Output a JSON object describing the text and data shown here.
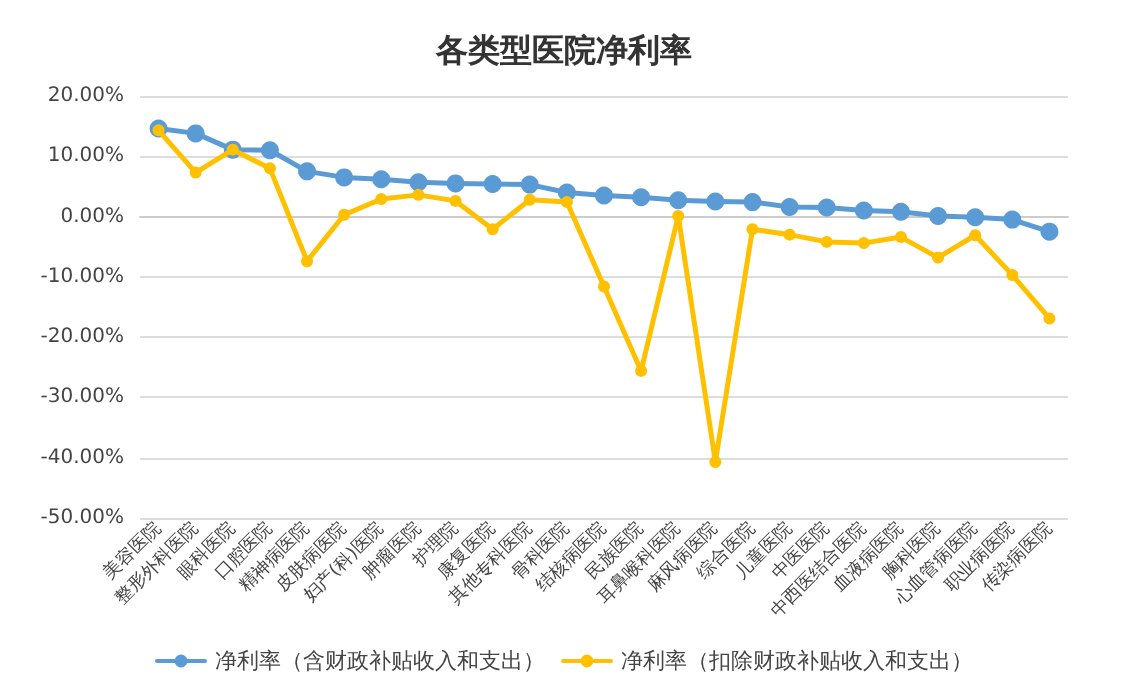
{
  "chart_data": {
    "type": "line",
    "title": "各类型医院净利率",
    "categories": [
      "美容医院",
      "整形外科医院",
      "眼科医院",
      "口腔医院",
      "精神病医院",
      "皮肤病医院",
      "妇产(科)医院",
      "肿瘤医院",
      "护理院",
      "康复医院",
      "其他专科医院",
      "骨科医院",
      "结核病医院",
      "民族医院",
      "耳鼻喉科医院",
      "麻风病医院",
      "综合医院",
      "儿童医院",
      "中医医院",
      "中西医结合医院",
      "血液病医院",
      "胸科医院",
      "心血管病医院",
      "职业病医院",
      "传染病医院"
    ],
    "series": [
      {
        "name": "净利率（含财政补贴收入和支出）",
        "color": "#5b9bd5",
        "values": [
          14.6,
          13.8,
          11.1,
          11.0,
          7.5,
          6.5,
          6.2,
          5.7,
          5.5,
          5.4,
          5.3,
          4.0,
          3.5,
          3.2,
          2.7,
          2.5,
          2.4,
          1.6,
          1.5,
          1.0,
          0.8,
          0.1,
          -0.1,
          -0.5,
          -2.5
        ]
      },
      {
        "name": "净利率（扣除财政补贴收入和支出）",
        "color": "#ffc000",
        "values": [
          14.3,
          7.3,
          11.1,
          8.0,
          -7.4,
          0.3,
          2.9,
          3.6,
          2.6,
          -2.1,
          2.8,
          2.4,
          -11.6,
          -25.6,
          0.1,
          -40.7,
          -2.1,
          -3.0,
          -4.2,
          -4.4,
          -3.4,
          -6.8,
          -3.1,
          -9.7,
          -16.9
        ]
      }
    ],
    "ylim": [
      -50,
      20
    ],
    "yticks": [
      {
        "value": -50,
        "label": "-50.00%"
      },
      {
        "value": -40,
        "label": "-40.00%"
      },
      {
        "value": -30,
        "label": "-30.00%"
      },
      {
        "value": -20,
        "label": "-20.00%"
      },
      {
        "value": -10,
        "label": "-10.00%"
      },
      {
        "value": 0,
        "label": "0.00%"
      },
      {
        "value": 10,
        "label": "10.00%"
      },
      {
        "value": 20,
        "label": "20.00%"
      }
    ],
    "grid": "y",
    "legend": "bottom",
    "marker": "circle",
    "line_style": "solid"
  }
}
